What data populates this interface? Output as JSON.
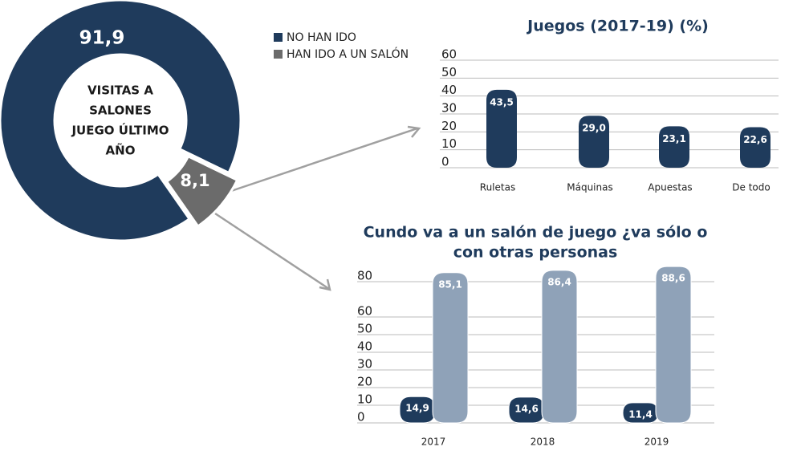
{
  "chart_data": [
    {
      "type": "donut",
      "categories": [
        "NO HAN IDO",
        "HAN IDO A UN SALÓN"
      ],
      "values": [
        91.9,
        8.1
      ],
      "value_labels": [
        "91,9",
        "8,1"
      ],
      "colors": [
        "#1f3b5c",
        "#6b6b6b"
      ],
      "center_label": [
        "VISITAS A",
        "SALONES",
        "JUEGO ÚLTIMO",
        "AÑO"
      ]
    },
    {
      "type": "bar",
      "title": "Juegos (2017-19) (%)",
      "categories": [
        "Ruletas",
        "Máquinas",
        "Apuestas",
        "De todo"
      ],
      "values": [
        43.5,
        29.0,
        23.1,
        22.6
      ],
      "value_labels": [
        "43,5",
        "29,0",
        "23,1",
        "22,6"
      ],
      "color": "#1f3b5c",
      "ylim": [
        0,
        60
      ],
      "yticks": [
        0,
        10,
        20,
        30,
        40,
        50,
        60
      ],
      "grid": true
    },
    {
      "type": "grouped_bar",
      "title": [
        "Cundo va a un salón de juego ¿va sólo o",
        "con otras personas"
      ],
      "categories": [
        "2017",
        "2018",
        "2019"
      ],
      "series": [
        {
          "color": "#1f3b5c",
          "values": [
            14.9,
            14.6,
            11.4
          ],
          "value_labels": [
            "14,9",
            "14,6",
            "11,4"
          ]
        },
        {
          "color": "#8fa2b8",
          "values": [
            85.1,
            86.4,
            88.6
          ],
          "value_labels": [
            "85,1",
            "86,4",
            "88,6"
          ]
        }
      ],
      "ylim": [
        0,
        90
      ],
      "yticks": [
        0,
        10,
        20,
        30,
        40,
        50,
        60,
        80
      ],
      "grid": true
    }
  ]
}
